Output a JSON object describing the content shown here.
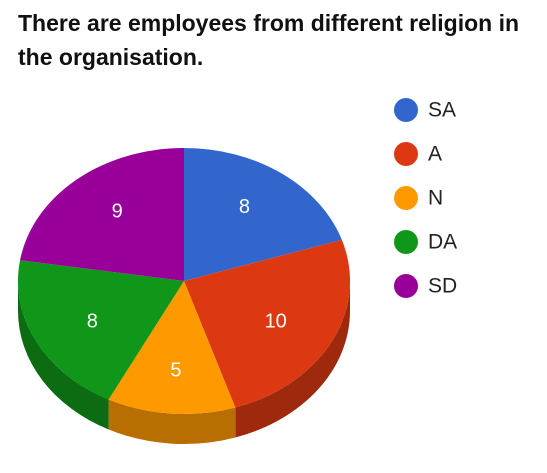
{
  "chart_data": {
    "type": "pie",
    "title": "There are employees from different religion in the organisation.",
    "categories": [
      "SA",
      "A",
      "N",
      "DA",
      "SD"
    ],
    "values": [
      8,
      10,
      5,
      8,
      9
    ],
    "colors": [
      "#3366cc",
      "#dc3912",
      "#ff9900",
      "#109618",
      "#990099"
    ],
    "legend": "right"
  }
}
